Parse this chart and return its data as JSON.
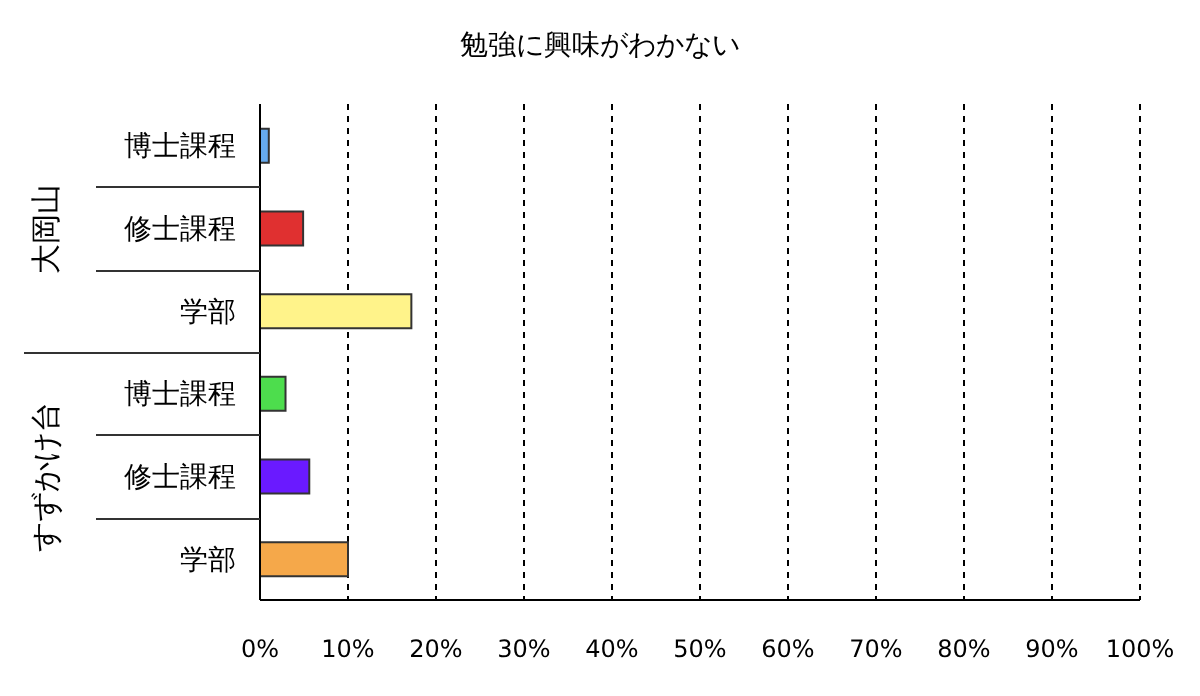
{
  "chart_data": {
    "type": "bar",
    "orientation": "horizontal",
    "title": "勉強に興味がわかない",
    "categories": [
      "博士課程",
      "修士課程",
      "学部",
      "博士課程",
      "修士課程",
      "学部"
    ],
    "values": [
      1.0,
      4.9,
      17.2,
      2.9,
      5.6,
      10.0
    ],
    "colors": [
      "#66aaee",
      "#e03030",
      "#fff38a",
      "#4ddd4d",
      "#6a1aff",
      "#f5a84a"
    ],
    "xlim": [
      0,
      100
    ],
    "xticks": [
      {
        "value": 0,
        "label": "0%"
      },
      {
        "value": 10,
        "label": "10%"
      },
      {
        "value": 20,
        "label": "20%"
      },
      {
        "value": 30,
        "label": "30%"
      },
      {
        "value": 40,
        "label": "40%"
      },
      {
        "value": 50,
        "label": "50%"
      },
      {
        "value": 60,
        "label": "60%"
      },
      {
        "value": 70,
        "label": "70%"
      },
      {
        "value": 80,
        "label": "80%"
      },
      {
        "value": 90,
        "label": "90%"
      },
      {
        "value": 100,
        "label": "100%"
      }
    ],
    "grid": "x",
    "annotations": [
      "大岡山",
      "すずかけ台"
    ]
  }
}
